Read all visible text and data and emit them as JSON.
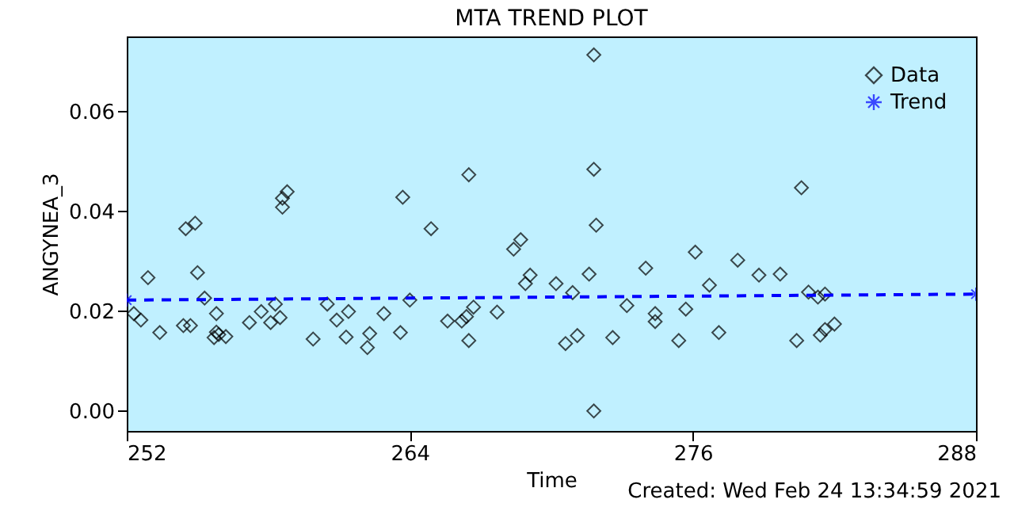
{
  "chart_data": {
    "type": "scatter",
    "title": "MTA TREND PLOT",
    "xlabel": "Time",
    "ylabel": "ANGYNEA_3",
    "annotations": [
      "Created: Wed Feb 24 13:34:59 2021"
    ],
    "xlim": [
      252,
      288
    ],
    "xticks": [
      252,
      264,
      276,
      288
    ],
    "ylim": [
      -0.004,
      0.075
    ],
    "yticks": [
      {
        "value": 0,
        "label": "0.00"
      },
      {
        "value": 0.02,
        "label": "0.02"
      },
      {
        "value": 0.04,
        "label": "0.04"
      },
      {
        "value": 0.06,
        "label": "0.06"
      }
    ],
    "grid": false,
    "legend": "top right",
    "series": [
      {
        "name": "Data",
        "marker": "diamond",
        "color": "#000000",
        "x": [
          252.3,
          252.6,
          252.9,
          253.4,
          254.4,
          254.5,
          254.7,
          254.9,
          255.0,
          255.3,
          255.8,
          255.7,
          255.8,
          255.9,
          256.2,
          257.2,
          257.7,
          258.1,
          258.3,
          258.5,
          258.6,
          258.6,
          258.8,
          259.9,
          260.5,
          260.9,
          261.4,
          261.3,
          262.3,
          262.2,
          262.9,
          263.6,
          263.7,
          264.0,
          264.9,
          265.6,
          266.2,
          266.4,
          266.7,
          266.5,
          266.5,
          267.7,
          268.4,
          268.7,
          268.9,
          269.1,
          270.2,
          270.6,
          270.9,
          271.1,
          271.6,
          271.8,
          271.8,
          271.9,
          271.8,
          272.6,
          273.2,
          274.0,
          274.4,
          274.4,
          275.4,
          275.7,
          276.1,
          276.7,
          277.1,
          277.9,
          278.8,
          279.7,
          280.6,
          280.4,
          280.9,
          281.3,
          281.6,
          281.4,
          281.6,
          282.0
        ],
        "values": [
          0.0195,
          0.0182,
          0.0267,
          0.0157,
          0.0171,
          0.0365,
          0.0171,
          0.0376,
          0.0277,
          0.0226,
          0.0195,
          0.0147,
          0.0158,
          0.0153,
          0.0149,
          0.0177,
          0.0199,
          0.0177,
          0.0214,
          0.0187,
          0.0408,
          0.0426,
          0.0439,
          0.0144,
          0.0214,
          0.0182,
          0.0199,
          0.0148,
          0.0155,
          0.0127,
          0.0195,
          0.0157,
          0.0428,
          0.0222,
          0.0365,
          0.018,
          0.018,
          0.0189,
          0.0208,
          0.0473,
          0.0141,
          0.0198,
          0.0324,
          0.0343,
          0.0255,
          0.0272,
          0.0255,
          0.0135,
          0.0237,
          0.0151,
          0.0274,
          0.0713,
          0.0484,
          0.0372,
          0.0,
          0.0147,
          0.0211,
          0.0286,
          0.0195,
          0.0179,
          0.0141,
          0.0204,
          0.0318,
          0.0252,
          0.0157,
          0.0302,
          0.0272,
          0.0274,
          0.0447,
          0.0141,
          0.0238,
          0.0228,
          0.0234,
          0.0152,
          0.0163,
          0.0174
        ]
      },
      {
        "name": "Trend",
        "type": "line",
        "marker": "cross",
        "line_style": "dashed",
        "color": "#0000ff",
        "x": [
          252,
          288
        ],
        "values": [
          0.0222,
          0.0234
        ]
      }
    ]
  }
}
